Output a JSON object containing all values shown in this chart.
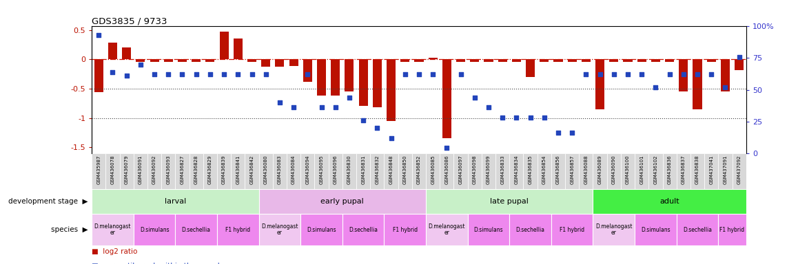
{
  "title": "GDS3835 / 9733",
  "samples": [
    "GSM435987",
    "GSM436078",
    "GSM436079",
    "GSM436091",
    "GSM436092",
    "GSM436093",
    "GSM436827",
    "GSM436828",
    "GSM436829",
    "GSM436839",
    "GSM436841",
    "GSM436842",
    "GSM436080",
    "GSM436083",
    "GSM436084",
    "GSM436094",
    "GSM436095",
    "GSM436096",
    "GSM436830",
    "GSM436831",
    "GSM436832",
    "GSM436848",
    "GSM436850",
    "GSM436852",
    "GSM436085",
    "GSM436086",
    "GSM436097",
    "GSM436098",
    "GSM436099",
    "GSM436833",
    "GSM436834",
    "GSM436835",
    "GSM436854",
    "GSM436856",
    "GSM436857",
    "GSM436088",
    "GSM436089",
    "GSM436090",
    "GSM436100",
    "GSM436101",
    "GSM436102",
    "GSM436836",
    "GSM436837",
    "GSM436838",
    "GSM437041",
    "GSM437091",
    "GSM437092"
  ],
  "log2_ratio": [
    -0.56,
    0.28,
    0.2,
    -0.04,
    -0.04,
    -0.04,
    -0.04,
    -0.04,
    -0.04,
    0.47,
    0.35,
    -0.04,
    -0.13,
    -0.13,
    -0.11,
    -0.38,
    -0.62,
    -0.62,
    -0.55,
    -0.8,
    -0.82,
    -1.05,
    -0.04,
    -0.04,
    0.03,
    -1.35,
    -0.04,
    -0.04,
    -0.04,
    -0.04,
    -0.04,
    -0.3,
    -0.04,
    -0.04,
    -0.04,
    -0.04,
    -0.85,
    -0.04,
    -0.04,
    -0.04,
    -0.04,
    -0.04,
    -0.55,
    -0.85,
    -0.04,
    -0.55,
    -0.18
  ],
  "percentile": [
    93,
    64,
    61,
    70,
    62,
    62,
    62,
    62,
    62,
    62,
    62,
    62,
    62,
    40,
    36,
    62,
    36,
    36,
    44,
    26,
    20,
    12,
    62,
    62,
    62,
    4,
    62,
    44,
    36,
    28,
    28,
    28,
    28,
    16,
    16,
    62,
    62,
    62,
    62,
    62,
    52,
    62,
    62,
    62,
    62,
    52,
    76
  ],
  "dev_stages": [
    {
      "label": "larval",
      "start": 0,
      "end": 12,
      "color": "#c8f0c8"
    },
    {
      "label": "early pupal",
      "start": 12,
      "end": 24,
      "color": "#e8b8e8"
    },
    {
      "label": "late pupal",
      "start": 24,
      "end": 36,
      "color": "#c8f0c8"
    },
    {
      "label": "adult",
      "start": 36,
      "end": 47,
      "color": "#44ee44"
    }
  ],
  "species_groups": [
    {
      "label": "D.melanogast\ner",
      "start": 0,
      "end": 3,
      "color": "#f0c8f0"
    },
    {
      "label": "D.simulans",
      "start": 3,
      "end": 6,
      "color": "#ee88ee"
    },
    {
      "label": "D.sechellia",
      "start": 6,
      "end": 9,
      "color": "#ee88ee"
    },
    {
      "label": "F1 hybrid",
      "start": 9,
      "end": 12,
      "color": "#ee88ee"
    },
    {
      "label": "D.melanogast\ner",
      "start": 12,
      "end": 15,
      "color": "#f0c8f0"
    },
    {
      "label": "D.simulans",
      "start": 15,
      "end": 18,
      "color": "#ee88ee"
    },
    {
      "label": "D.sechellia",
      "start": 18,
      "end": 21,
      "color": "#ee88ee"
    },
    {
      "label": "F1 hybrid",
      "start": 21,
      "end": 24,
      "color": "#ee88ee"
    },
    {
      "label": "D.melanogast\ner",
      "start": 24,
      "end": 27,
      "color": "#f0c8f0"
    },
    {
      "label": "D.simulans",
      "start": 27,
      "end": 30,
      "color": "#ee88ee"
    },
    {
      "label": "D.sechellia",
      "start": 30,
      "end": 33,
      "color": "#ee88ee"
    },
    {
      "label": "F1 hybrid",
      "start": 33,
      "end": 36,
      "color": "#ee88ee"
    },
    {
      "label": "D.melanogast\ner",
      "start": 36,
      "end": 39,
      "color": "#f0c8f0"
    },
    {
      "label": "D.simulans",
      "start": 39,
      "end": 42,
      "color": "#ee88ee"
    },
    {
      "label": "D.sechellia",
      "start": 42,
      "end": 45,
      "color": "#ee88ee"
    },
    {
      "label": "F1 hybrid",
      "start": 45,
      "end": 47,
      "color": "#ee88ee"
    }
  ],
  "ylim_left": [
    -1.6,
    0.56
  ],
  "ylim_right": [
    0,
    100
  ],
  "yticks_left": [
    0.5,
    0.0,
    -0.5,
    -1.0,
    -1.5
  ],
  "yticks_right": [
    0,
    25,
    50,
    75,
    100
  ],
  "bar_color": "#bb1100",
  "scatter_color": "#2244bb",
  "hline_color": "#cc1100",
  "dotline_color": "#444444",
  "bar_width": 0.65,
  "xtick_bg": "#d8d8d8",
  "figsize": [
    11.58,
    3.84
  ],
  "dpi": 100
}
